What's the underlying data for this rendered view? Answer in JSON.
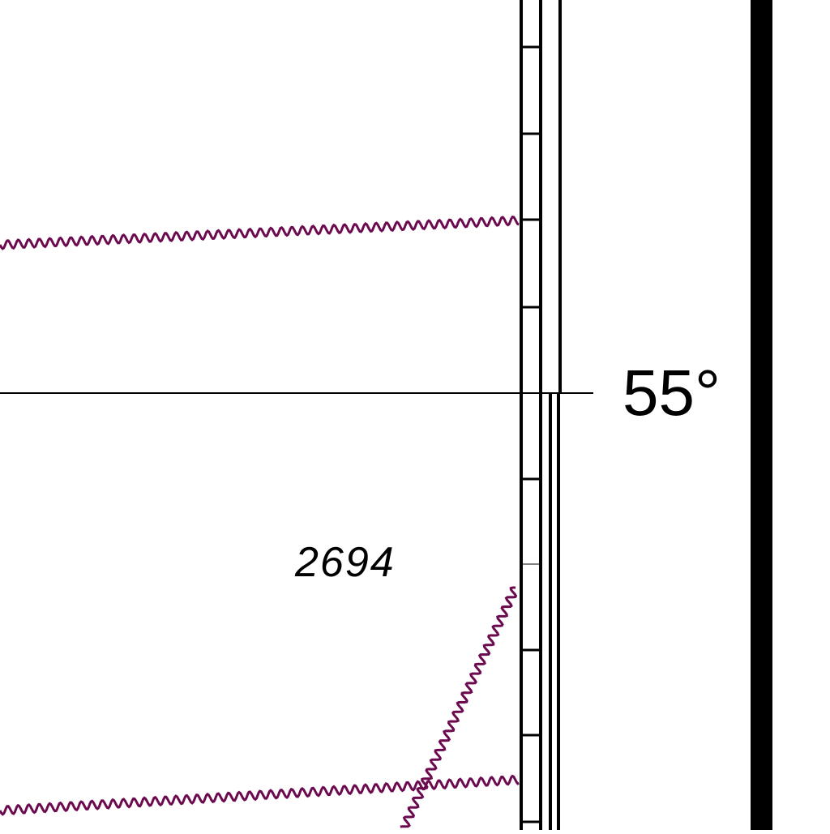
{
  "chart_title": "",
  "latitude_label": "55°",
  "depth_label": "2694",
  "colors": {
    "background": "#ffffff",
    "border": "#000000",
    "wavy_line": "#6b0a4e"
  },
  "icons": {
    "border_ticks": "scale-tick-marks",
    "boundary": "wavy-boundary-line"
  }
}
